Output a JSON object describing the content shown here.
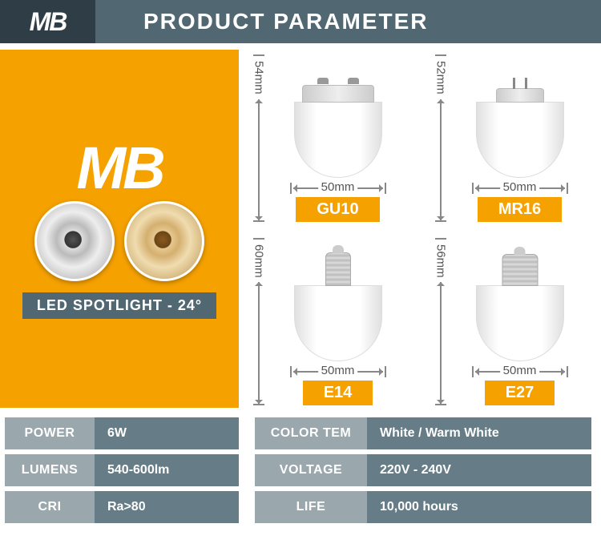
{
  "header": {
    "logo": "MB",
    "title": "PRODUCT PARAMETER"
  },
  "left": {
    "logo": "MB",
    "label": "LED SPOTLIGHT - 24°"
  },
  "bulbs": [
    {
      "name": "GU10",
      "height": "54mm",
      "width": "50mm"
    },
    {
      "name": "MR16",
      "height": "52mm",
      "width": "50mm"
    },
    {
      "name": "E14",
      "height": "60mm",
      "width": "50mm"
    },
    {
      "name": "E27",
      "height": "56mm",
      "width": "50mm"
    }
  ],
  "specs": {
    "power_label": "POWER",
    "power_value": "6W",
    "colortem_label": "COLOR  TEM",
    "colortem_value": "White / Warm White",
    "lumens_label": "LUMENS",
    "lumens_value": "540-600lm",
    "voltage_label": "VOLTAGE",
    "voltage_value": "220V - 240V",
    "cri_label": "CRI",
    "cri_value": "Ra>80",
    "life_label": "LIFE",
    "life_value": "10,000 hours"
  },
  "colors": {
    "header_bg": "#516872",
    "logo_bg": "#2f3e46",
    "accent": "#f5a100",
    "spec_label_bg": "#9aa7ac",
    "spec_value_bg": "#667d87"
  }
}
